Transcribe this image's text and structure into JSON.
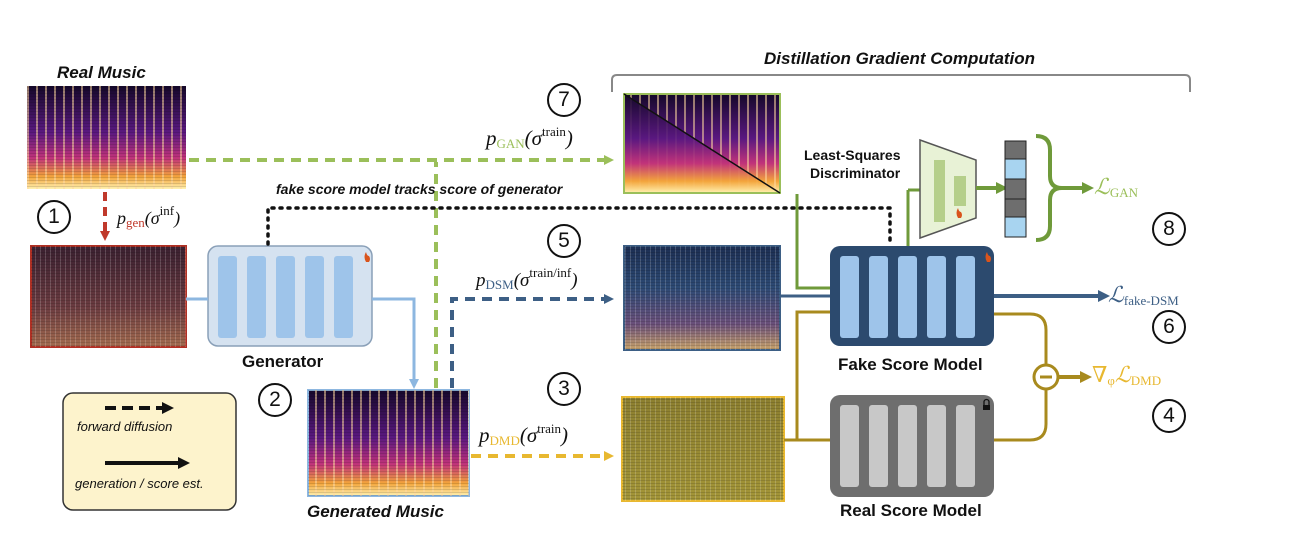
{
  "title": "Distillation Gradient Computation",
  "labels": {
    "real_music": "Real Music",
    "generated_music": "Generated Music",
    "generator": "Generator",
    "fake_score_model": "Fake Score Model",
    "real_score_model": "Real Score Model",
    "discriminator_line1": "Least-Squares",
    "discriminator_line2": "Discriminator",
    "tracking_note": "fake score model tracks score of generator"
  },
  "legend": {
    "forward": "forward diffusion",
    "generation": "generation / score est."
  },
  "steps": [
    "1",
    "2",
    "3",
    "4",
    "5",
    "6",
    "7",
    "8"
  ],
  "math": {
    "p": "p",
    "gen_sub": "gen",
    "gen_sup": "inf",
    "dmd_sub": "DMD",
    "dsm_sub": "DSM",
    "gan_sub": "GAN",
    "train_sup": "train",
    "train_inf_sup": "train/inf",
    "sigma": "σ",
    "loss_gan": "ℒ",
    "loss_gan_sub": "GAN",
    "loss_dsm": "ℒ",
    "loss_dsm_sub": "fake-DSM",
    "grad": "∇",
    "grad_sub": "φ",
    "loss_dmd": "ℒ",
    "loss_dmd_sub": "DMD"
  },
  "colors": {
    "gan": "#9bbf5a",
    "gan_dark": "#6f9a3a",
    "dsm": "#3d5f85",
    "dmd": "#e8b830",
    "dmd_dark": "#a88a1e",
    "gen_red": "#c0392b",
    "generator_blue": "#8db7e0",
    "fake_model": "#2c4a6e",
    "real_model": "#6e6e6e"
  }
}
